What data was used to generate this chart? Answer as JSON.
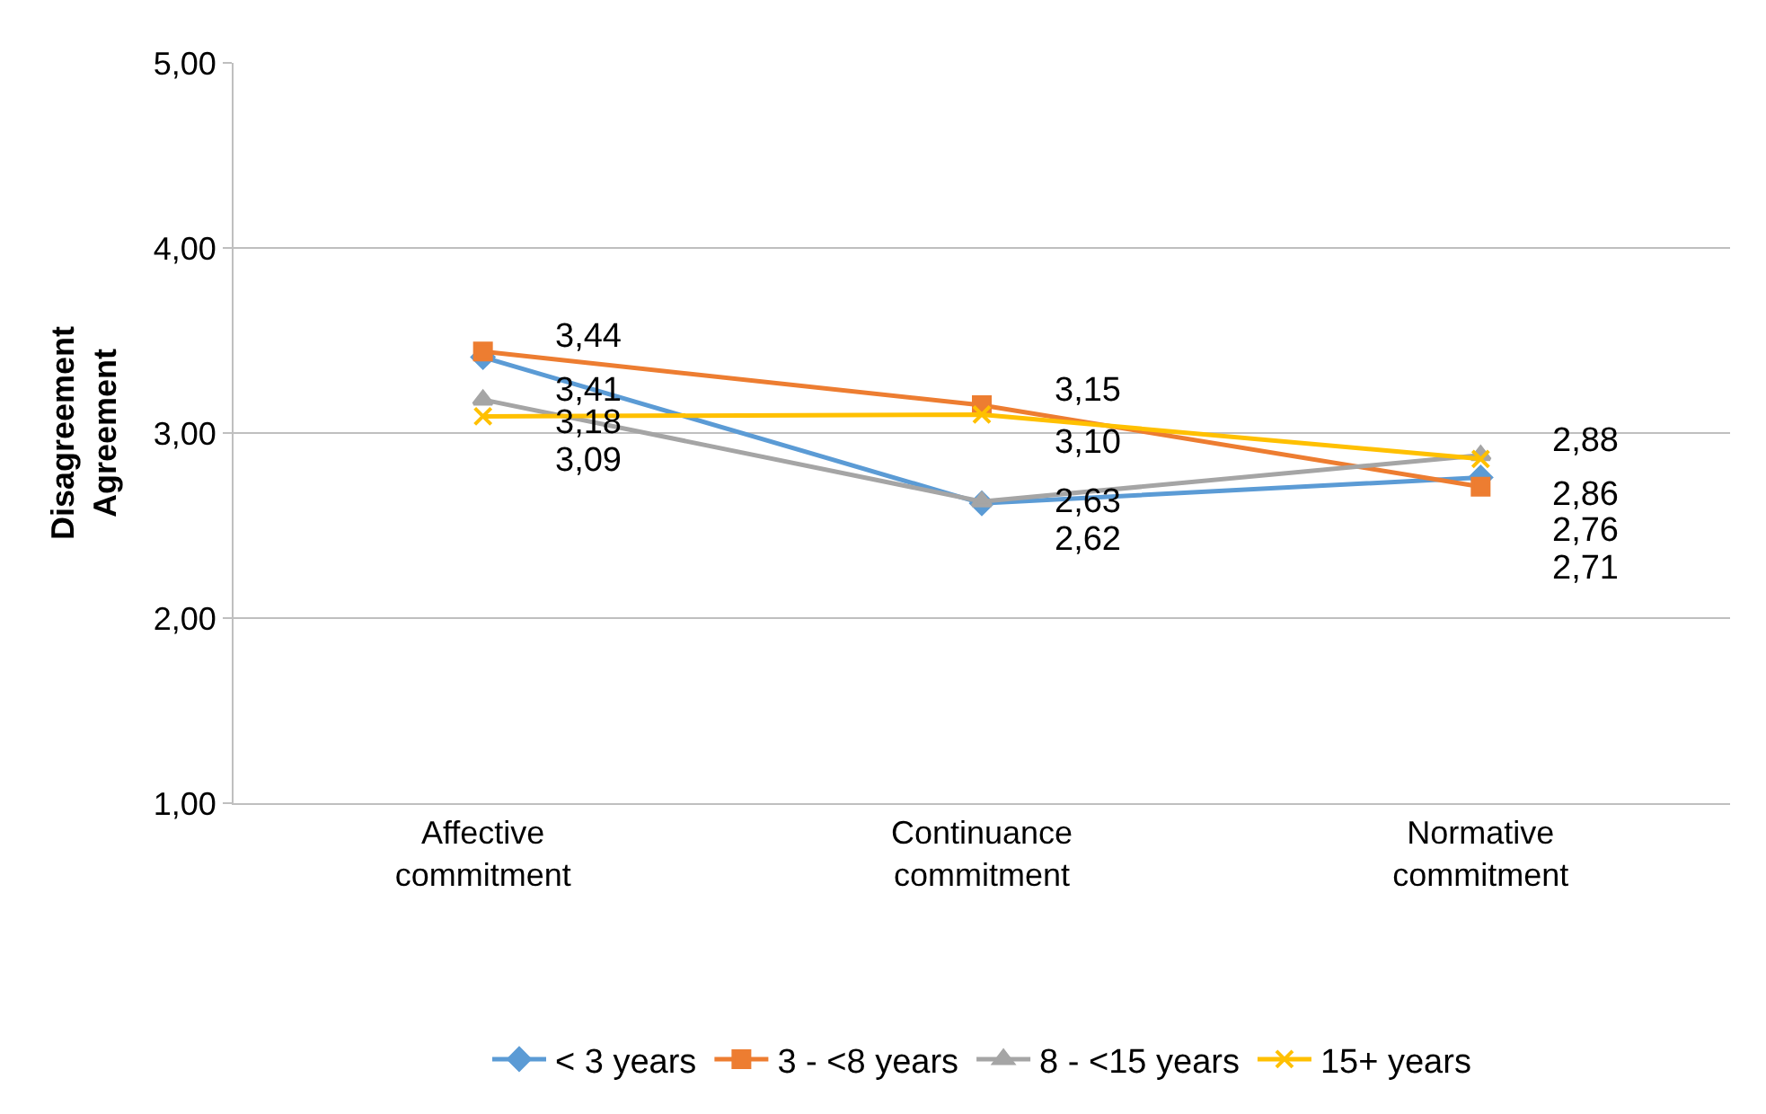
{
  "chart_data": {
    "type": "line",
    "ylabel": "Disagreement\nAgreement",
    "categories": [
      "Affective\ncommitment",
      "Continuance\ncommitment",
      "Normative\ncommitment"
    ],
    "series": [
      {
        "name": "< 3 years",
        "color": "#5b9bd5",
        "marker": "diamond",
        "values": [
          3.41,
          2.62,
          2.76
        ],
        "value_labels": [
          "3,41",
          "2,62",
          "2,76"
        ]
      },
      {
        "name": "3 - <8 years",
        "color": "#ed7d31",
        "marker": "square",
        "values": [
          3.44,
          3.15,
          2.71
        ],
        "value_labels": [
          "3,44",
          "3,15",
          "2,71"
        ]
      },
      {
        "name": "8 - <15 years",
        "color": "#a5a5a5",
        "marker": "triangle",
        "values": [
          3.18,
          2.63,
          2.88
        ],
        "value_labels": [
          "3,18",
          "2,63",
          "2,88"
        ]
      },
      {
        "name": "15+ years",
        "color": "#ffc000",
        "marker": "cross",
        "values": [
          3.09,
          3.1,
          2.86
        ],
        "value_labels": [
          "3,09",
          "3,10",
          "2,86"
        ]
      }
    ],
    "ylim": [
      1,
      5
    ],
    "yticks": [
      {
        "value": 1,
        "label": "1,00"
      },
      {
        "value": 2,
        "label": "2,00"
      },
      {
        "value": 3,
        "label": "3,00"
      },
      {
        "value": 4,
        "label": "4,00"
      },
      {
        "value": 5,
        "label": "5,00"
      }
    ],
    "grid": "y",
    "legend": "bottom"
  }
}
